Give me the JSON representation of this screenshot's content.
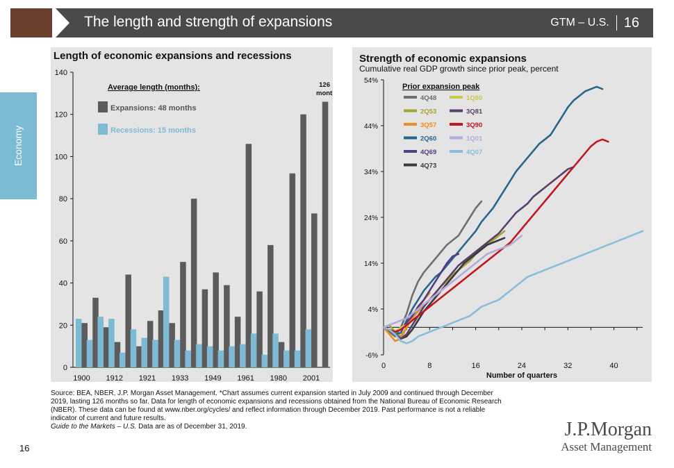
{
  "header": {
    "title": "The length and strength of expansions",
    "code": "GTM – U.S.",
    "page": "16"
  },
  "side_tab": {
    "label": "Economy"
  },
  "footer": {
    "source_lines": [
      "Source: BEA, NBER, J.P. Morgan Asset Management. *Chart assumes current expansion started in July 2009 and continued through December",
      "2019, lasting 126 months so far. Data for length of economic expansions and recessions obtained from the National Bureau of Economic Research",
      "(NBER). These data can be found at www.nber.org/cycles/ and reflect information through December 2019. Past performance is not a reliable",
      "indicator of current and future results."
    ],
    "guide_italic": "Guide to the Markets – U.S.",
    "guide_rest": " Data are as of December 31, 2019.",
    "page_number": "16"
  },
  "logo": {
    "line1": "J.P.Morgan",
    "line2": "Asset Management"
  },
  "colors": {
    "expansion": "#5b5b5b",
    "recession": "#7dbad3",
    "panel": "#e4e4e4",
    "header": "#4a4a4a",
    "brown": "#6b3f2c"
  },
  "chart_data": [
    {
      "type": "bar",
      "title": "Length of economic expansions and recessions",
      "ylim": [
        0,
        140
      ],
      "yticks": [
        "0",
        "20",
        "40",
        "60",
        "80",
        "100",
        "120",
        "140"
      ],
      "xtick_labels": [
        "1900",
        "1912",
        "1921",
        "1933",
        "1949",
        "1961",
        "1980",
        "2001"
      ],
      "legend": {
        "heading": "Average length (months):",
        "expansions": "Expansions:  48 months",
        "recessions": "Recessions:  15 months"
      },
      "annotation": {
        "line1": "126",
        "line2": "months*"
      },
      "series": [
        {
          "name": "Expansions",
          "values": [
            21,
            33,
            19,
            12,
            44,
            10,
            22,
            27,
            21,
            50,
            80,
            37,
            45,
            39,
            24,
            106,
            36,
            58,
            12,
            92,
            120,
            73,
            126
          ]
        },
        {
          "name": "Recessions",
          "values": [
            23,
            13,
            24,
            23,
            7,
            18,
            14,
            13,
            43,
            13,
            8,
            11,
            10,
            8,
            10,
            11,
            16,
            6,
            16,
            8,
            8,
            18,
            0
          ]
        }
      ]
    },
    {
      "type": "line",
      "title": "Strength of economic expansions",
      "subtitle": "Cumulative real GDP growth since prior peak, percent",
      "xlabel": "Number of quarters",
      "xlim": [
        0,
        45
      ],
      "ylim": [
        -6,
        54
      ],
      "xticks": [
        "0",
        "8",
        "16",
        "24",
        "32",
        "40"
      ],
      "ytick_labels": [
        "-6%",
        "4%",
        "14%",
        "24%",
        "34%",
        "44%",
        "54%"
      ],
      "legend_title": "Prior expansion peak",
      "series": [
        {
          "name": "4Q48",
          "color": "#6e6e6e",
          "values": [
            0,
            -1,
            -2,
            0,
            3,
            7,
            10,
            12,
            13.5,
            15,
            16.5,
            18,
            19,
            20,
            22,
            24,
            26,
            27.5
          ]
        },
        {
          "name": "2Q53",
          "color": "#a6a433",
          "values": [
            0,
            0.5,
            -1,
            -2,
            0,
            2,
            3.5,
            5,
            6,
            7.5,
            9,
            10,
            11.5,
            12.5,
            13.5,
            14.5,
            16,
            17,
            18,
            19,
            20,
            21
          ]
        },
        {
          "name": "3Q57",
          "color": "#f28c1e",
          "values": [
            0,
            -1.5,
            -3,
            -2.5,
            0,
            2,
            4,
            6,
            7.5
          ]
        },
        {
          "name": "2Q60",
          "color": "#27658d",
          "values": [
            0,
            -0.5,
            -1.5,
            -1.2,
            1.5,
            4,
            6,
            8,
            9.5,
            11,
            12,
            13.5,
            15,
            16.5,
            18,
            19.5,
            21,
            23,
            24.5,
            26,
            28,
            30,
            32,
            34,
            35.5,
            37,
            38.5,
            40,
            41,
            42,
            44,
            46,
            48,
            49.5,
            50.5,
            51.5,
            52,
            52.5,
            52
          ]
        },
        {
          "name": "4Q69",
          "color": "#533b88",
          "values": [
            0,
            -0.5,
            -1,
            -0.5,
            1,
            2.5,
            4.5,
            6,
            8,
            10,
            12,
            14,
            15.5,
            16
          ]
        },
        {
          "name": "4Q73",
          "color": "#3a3a3a",
          "values": [
            0,
            -0.5,
            -1.5,
            -2.5,
            -2,
            -0.5,
            1.5,
            3.5,
            5,
            6.5,
            8,
            9.5,
            11,
            12.5,
            14,
            15,
            16,
            17,
            18,
            18.5,
            19,
            19.5
          ]
        },
        {
          "name": "1Q80",
          "color": "#c8c84a",
          "values": [
            0,
            -0.5,
            -1,
            0,
            0.5,
            1.5,
            2.5
          ]
        },
        {
          "name": "3Q81",
          "color": "#5b3f6a",
          "values": [
            0,
            -0.5,
            -1.5,
            -2.5,
            -1.5,
            0.5,
            2.5,
            4.5,
            6,
            7.5,
            9,
            10.5,
            12,
            13.5,
            14.5,
            15.5,
            16.5,
            17.5,
            18.5,
            19.5,
            20.5,
            22,
            23.5,
            25,
            26,
            27,
            28.5,
            29.5,
            30.5,
            31.5,
            32.5,
            33.5,
            34.5,
            35
          ]
        },
        {
          "name": "3Q90",
          "color": "#c0171f",
          "values": [
            0,
            -0.5,
            -1,
            -0.5,
            0.5,
            1.5,
            2.5,
            3.5,
            4.5,
            5.5,
            6.5,
            7.5,
            8.5,
            9.5,
            10.5,
            11.5,
            12.5,
            13.5,
            14.5,
            15.5,
            16.5,
            17.5,
            18.5,
            20,
            21.5,
            23,
            24.5,
            26,
            27.5,
            29,
            30.5,
            32,
            33.5,
            35,
            36.5,
            38,
            39.5,
            40.5,
            41,
            40.5
          ]
        },
        {
          "name": "1Q01",
          "color": "#b6a9db",
          "values": [
            0,
            0.5,
            1,
            1.5,
            2,
            3,
            4,
            5,
            6,
            7,
            8,
            9,
            10,
            11,
            12,
            13,
            14,
            15,
            16,
            16.5,
            17,
            17.5,
            18,
            19,
            20
          ]
        },
        {
          "name": "4Q07",
          "color": "#89bdd9",
          "values": [
            0,
            -0.5,
            -1.5,
            -3,
            -3.5,
            -3,
            -2,
            -1.5,
            -1,
            -0.5,
            0,
            0.5,
            1,
            1.5,
            2,
            2.5,
            3.5,
            4.5,
            5,
            5.5,
            6,
            7,
            8,
            9,
            10,
            11,
            11.5,
            12,
            12.5,
            13,
            13.5,
            14,
            14.5,
            15,
            15.5,
            16,
            16.5,
            17,
            17.5,
            18,
            18.5,
            19,
            19.5,
            20,
            20.5,
            21
          ]
        }
      ]
    }
  ]
}
